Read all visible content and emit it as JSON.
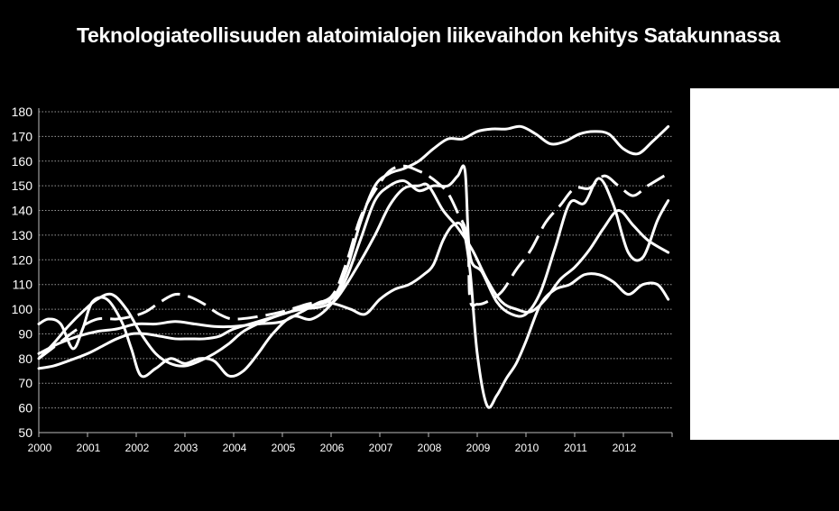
{
  "chart_data": {
    "type": "line",
    "title": "Teknologiateollisuuden alatoimialojen liikevaihdon kehitys Satakunnassa",
    "xlabel": "",
    "ylabel": "",
    "ylim": [
      50,
      180
    ],
    "yticks": [
      50,
      60,
      70,
      80,
      90,
      100,
      110,
      120,
      130,
      140,
      150,
      160,
      170,
      180
    ],
    "xlim": [
      2000,
      2013
    ],
    "xticks": [
      "2000",
      "2001",
      "2002",
      "2003",
      "2004",
      "2005",
      "2006",
      "2007",
      "2008",
      "2009",
      "2010",
      "2011",
      "2012"
    ],
    "grid": "horizontal",
    "legend": "right (blank box)",
    "series_color": "#ffffff",
    "series": [
      {
        "style": "solid",
        "x": [
          2000,
          2000.3,
          2000.6,
          2001,
          2001.3,
          2001.6,
          2001.9,
          2002.2,
          2002.5,
          2002.8,
          2003.1,
          2003.4,
          2003.7,
          2004,
          2004.5,
          2005,
          2005.5,
          2006,
          2006.3,
          2006.6,
          2006.9,
          2007.2,
          2007.5,
          2007.8,
          2008.1,
          2008.4,
          2008.7,
          2009,
          2009.3,
          2009.6,
          2009.9,
          2010.2,
          2010.5,
          2010.8,
          2011.1,
          2011.4,
          2011.7,
          2012,
          2012.3,
          2012.6,
          2012.92
        ],
        "y": [
          76,
          77,
          79,
          82,
          85,
          88,
          90,
          90,
          89,
          88,
          88,
          88,
          89,
          92,
          95,
          98,
          101,
          104,
          115,
          135,
          150,
          155,
          157,
          160,
          165,
          169,
          169,
          172,
          173,
          173,
          174,
          171,
          167,
          168,
          171,
          172,
          171,
          165,
          163,
          168,
          174
        ]
      },
      {
        "style": "solid",
        "x": [
          2000,
          2000.3,
          2000.6,
          2000.9,
          2001.2,
          2001.5,
          2001.8,
          2002.1,
          2002.4,
          2002.7,
          2003,
          2003.3,
          2003.6,
          2003.9,
          2004.2,
          2004.6,
          2005,
          2005.4,
          2005.8,
          2006.1,
          2006.5,
          2006.9,
          2007.2,
          2007.5,
          2007.8,
          2008,
          2008.3,
          2008.6,
          2008.9,
          2009.2,
          2009.5,
          2009.8,
          2010.1,
          2010.4,
          2010.7,
          2011,
          2011.3,
          2011.6,
          2011.9,
          2012.2,
          2012.5,
          2012.92
        ],
        "y": [
          80,
          86,
          93,
          99,
          104,
          106,
          100,
          90,
          82,
          78,
          77,
          79,
          82,
          86,
          91,
          95,
          98,
          100,
          101,
          104,
          116,
          130,
          142,
          149,
          150,
          150,
          140,
          133,
          124,
          112,
          103,
          100,
          99,
          104,
          112,
          117,
          124,
          133,
          140,
          134,
          128,
          123
        ]
      },
      {
        "style": "solid",
        "x": [
          2000,
          2000.2,
          2000.45,
          2000.7,
          2000.9,
          2001.1,
          2001.4,
          2001.7,
          2001.9,
          2002.1,
          2002.4,
          2002.7,
          2003,
          2003.3,
          2003.6,
          2003.9,
          2004.2,
          2004.5,
          2004.8,
          2005.2,
          2005.6,
          2006,
          2006.3,
          2006.6,
          2006.9,
          2007.2,
          2007.5,
          2007.8,
          2008.1,
          2008.4,
          2008.6,
          2008.75,
          2008.85,
          2009.1,
          2009.4,
          2009.7,
          2010,
          2010.3,
          2010.6,
          2010.9,
          2011.2,
          2011.5,
          2011.8,
          2012.1,
          2012.4,
          2012.7,
          2012.92
        ],
        "y": [
          94,
          96,
          94,
          84,
          92,
          103,
          104,
          95,
          84,
          73,
          76,
          80,
          78,
          80,
          79,
          73,
          75,
          82,
          90,
          97,
          96,
          102,
          112,
          128,
          144,
          150,
          152,
          148,
          150,
          150,
          154,
          156,
          122,
          115,
          103,
          98,
          98,
          107,
          125,
          143,
          143,
          153,
          142,
          123,
          121,
          136,
          144
        ]
      },
      {
        "style": "solid",
        "x": [
          2000,
          2000.4,
          2000.8,
          2001.2,
          2001.6,
          2002,
          2002.4,
          2002.8,
          2003.2,
          2003.6,
          2004,
          2004.5,
          2005,
          2005.4,
          2005.8,
          2006.1,
          2006.4,
          2006.7,
          2007,
          2007.3,
          2007.6,
          2007.9,
          2008.1,
          2008.3,
          2008.5,
          2008.7,
          2008.85,
          2009,
          2009.2,
          2009.4,
          2009.6,
          2009.8,
          2010,
          2010.3,
          2010.6,
          2010.9,
          2011.2,
          2011.5,
          2011.8,
          2012.1,
          2012.4,
          2012.7,
          2012.92
        ],
        "y": [
          82,
          86,
          89,
          91,
          92,
          94,
          94,
          95,
          94,
          93,
          93,
          94,
          95,
          99,
          103,
          102,
          100,
          98,
          104,
          108,
          110,
          114,
          118,
          128,
          134,
          133,
          116,
          82,
          61,
          65,
          72,
          78,
          87,
          102,
          108,
          110,
          114,
          114,
          111,
          106,
          110,
          110,
          104
        ]
      },
      {
        "style": "dashed",
        "x": [
          2000,
          2000.4,
          2000.8,
          2001.2,
          2001.6,
          2001.9,
          2002.2,
          2002.5,
          2002.8,
          2003.1,
          2003.4,
          2003.7,
          2004,
          2004.5,
          2005,
          2005.5,
          2006,
          2006.3,
          2006.6,
          2006.9,
          2007.2,
          2007.5,
          2007.8,
          2008,
          2008.2,
          2008.4,
          2008.6,
          2008.8,
          2008.85,
          2009,
          2009.2,
          2009.5,
          2009.8,
          2010.1,
          2010.4,
          2010.7,
          2011,
          2011.3,
          2011.6,
          2011.9,
          2012.2,
          2012.5,
          2012.92
        ],
        "y": [
          80,
          86,
          92,
          96,
          96,
          97,
          99,
          103,
          106,
          105,
          102,
          98,
          96,
          97,
          99,
          102,
          105,
          118,
          137,
          148,
          156,
          158,
          156,
          154,
          151,
          147,
          139,
          129,
          104,
          102,
          103,
          107,
          116,
          124,
          135,
          142,
          149,
          149,
          154,
          150,
          146,
          150,
          155
        ]
      }
    ]
  }
}
